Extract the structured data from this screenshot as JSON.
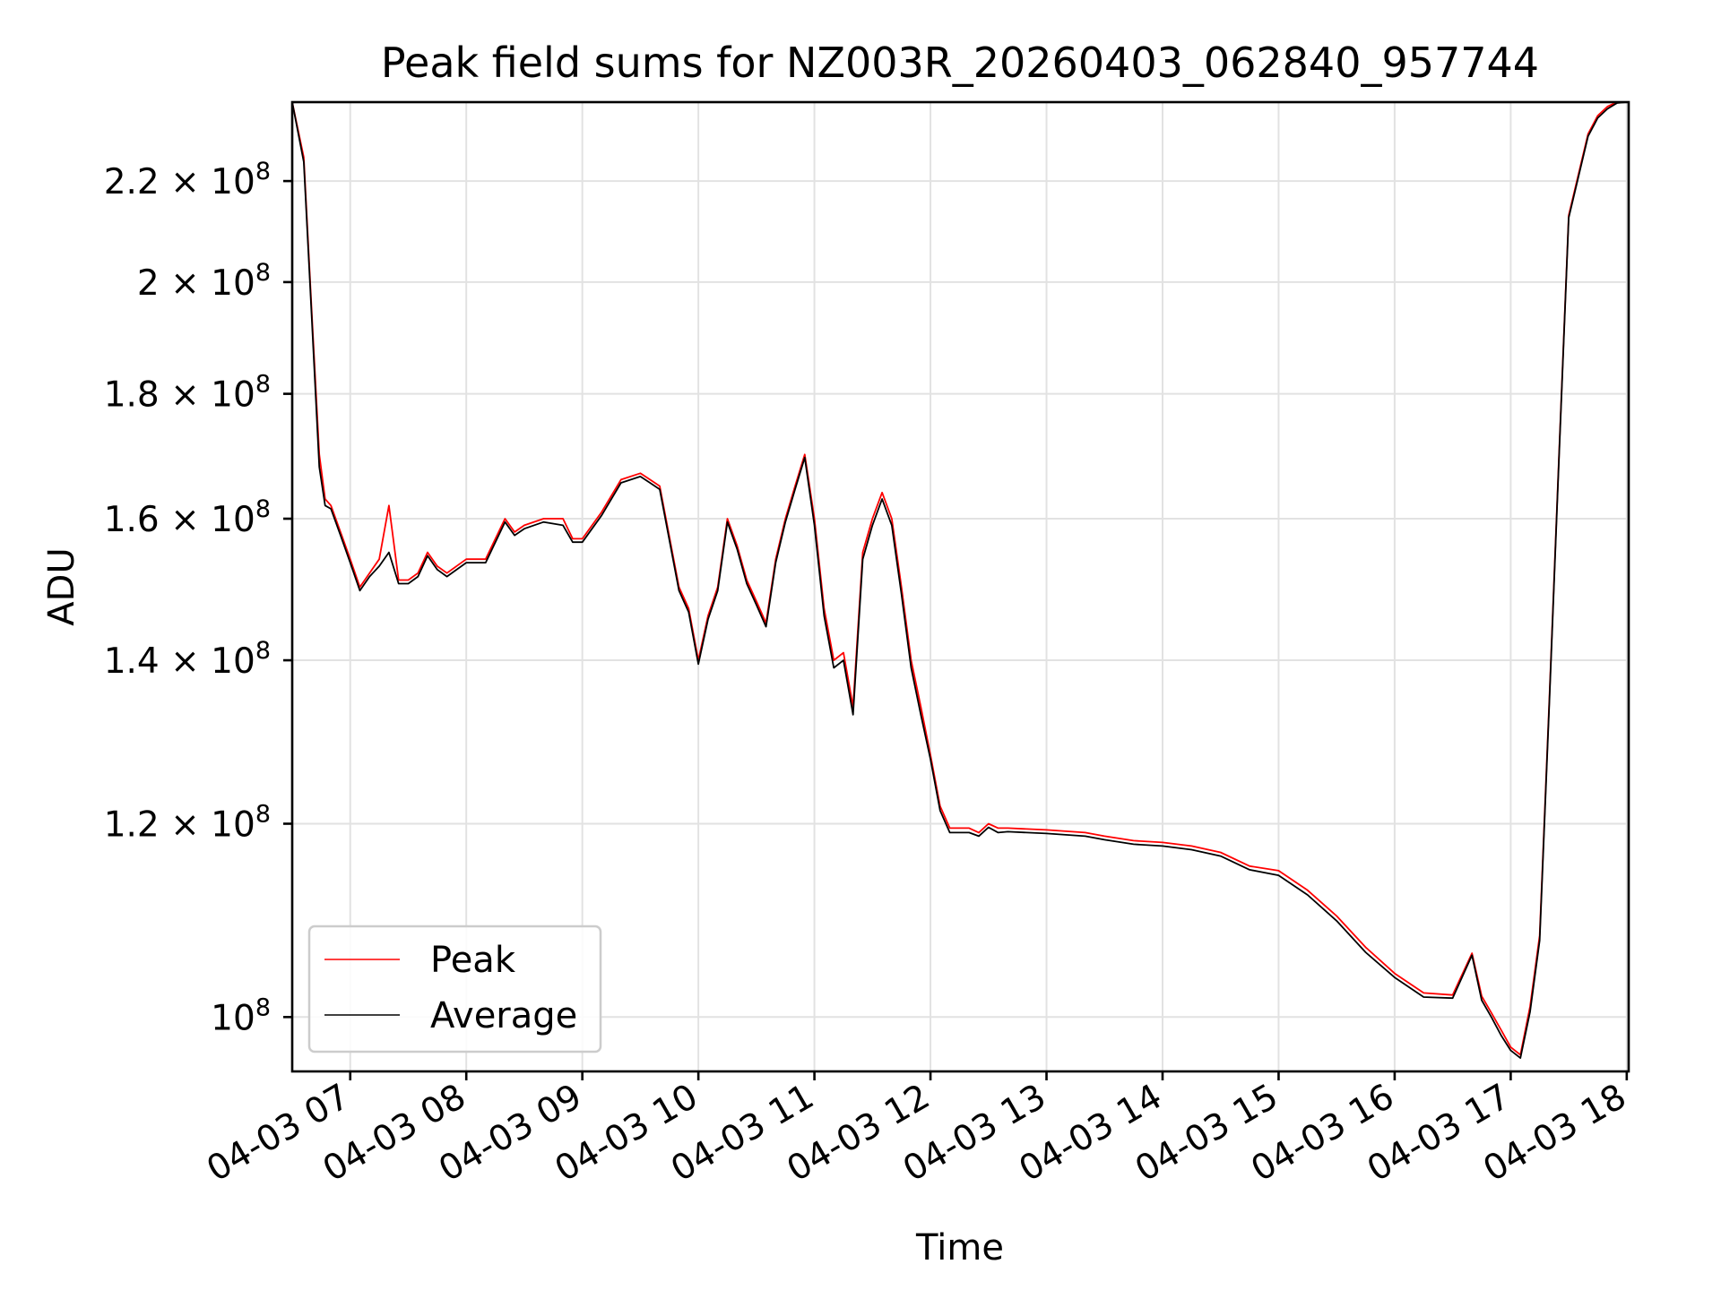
{
  "chart_data": {
    "type": "line",
    "title": "Peak field sums for NZ003R_20260403_062840_957744",
    "xlabel": "Time",
    "ylabel": "ADU",
    "yscale": "log",
    "xlim": [
      "2026-04-03 06:30",
      "2026-04-03 18:01"
    ],
    "ylim": [
      95000000,
      237000000
    ],
    "grid": true,
    "legend_position": "lower-left",
    "x_ticks": [
      "04-03 07",
      "04-03 08",
      "04-03 09",
      "04-03 10",
      "04-03 11",
      "04-03 12",
      "04-03 13",
      "04-03 14",
      "04-03 15",
      "04-03 16",
      "04-03 17",
      "04-03 18"
    ],
    "y_ticks": [
      {
        "value": 100000000,
        "mantissa": "",
        "exponent": "8"
      },
      {
        "value": 120000000,
        "mantissa": "1.2",
        "exponent": "8"
      },
      {
        "value": 140000000,
        "mantissa": "1.4",
        "exponent": "8"
      },
      {
        "value": 160000000,
        "mantissa": "1.6",
        "exponent": "8"
      },
      {
        "value": 180000000,
        "mantissa": "1.8",
        "exponent": "8"
      },
      {
        "value": 200000000,
        "mantissa": "2",
        "exponent": "8"
      },
      {
        "value": 220000000,
        "mantissa": "2.2",
        "exponent": "8"
      }
    ],
    "series": [
      {
        "name": "Peak",
        "color": "#ff0000",
        "x": [
          "2026-04-03 06:30",
          "2026-04-03 06:36",
          "2026-04-03 06:40",
          "2026-04-03 06:44",
          "2026-04-03 06:47",
          "2026-04-03 06:50",
          "2026-04-03 06:55",
          "2026-04-03 07:00",
          "2026-04-03 07:05",
          "2026-04-03 07:10",
          "2026-04-03 07:15",
          "2026-04-03 07:20",
          "2026-04-03 07:25",
          "2026-04-03 07:30",
          "2026-04-03 07:35",
          "2026-04-03 07:40",
          "2026-04-03 07:45",
          "2026-04-03 07:50",
          "2026-04-03 08:00",
          "2026-04-03 08:10",
          "2026-04-03 08:20",
          "2026-04-03 08:25",
          "2026-04-03 08:30",
          "2026-04-03 08:40",
          "2026-04-03 08:50",
          "2026-04-03 08:55",
          "2026-04-03 09:00",
          "2026-04-03 09:10",
          "2026-04-03 09:20",
          "2026-04-03 09:30",
          "2026-04-03 09:35",
          "2026-04-03 09:40",
          "2026-04-03 09:50",
          "2026-04-03 09:55",
          "2026-04-03 10:00",
          "2026-04-03 10:05",
          "2026-04-03 10:10",
          "2026-04-03 10:15",
          "2026-04-03 10:20",
          "2026-04-03 10:25",
          "2026-04-03 10:30",
          "2026-04-03 10:35",
          "2026-04-03 10:40",
          "2026-04-03 10:45",
          "2026-04-03 10:50",
          "2026-04-03 10:55",
          "2026-04-03 11:00",
          "2026-04-03 11:05",
          "2026-04-03 11:10",
          "2026-04-03 11:15",
          "2026-04-03 11:20",
          "2026-04-03 11:25",
          "2026-04-03 11:30",
          "2026-04-03 11:35",
          "2026-04-03 11:40",
          "2026-04-03 11:45",
          "2026-04-03 11:50",
          "2026-04-03 11:55",
          "2026-04-03 12:00",
          "2026-04-03 12:05",
          "2026-04-03 12:10",
          "2026-04-03 12:15",
          "2026-04-03 12:20",
          "2026-04-03 12:25",
          "2026-04-03 12:30",
          "2026-04-03 12:35",
          "2026-04-03 12:40",
          "2026-04-03 13:00",
          "2026-04-03 13:20",
          "2026-04-03 13:30",
          "2026-04-03 13:45",
          "2026-04-03 14:00",
          "2026-04-03 14:15",
          "2026-04-03 14:30",
          "2026-04-03 14:45",
          "2026-04-03 15:00",
          "2026-04-03 15:15",
          "2026-04-03 15:30",
          "2026-04-03 15:45",
          "2026-04-03 16:00",
          "2026-04-03 16:15",
          "2026-04-03 16:30",
          "2026-04-03 16:40",
          "2026-04-03 16:45",
          "2026-04-03 16:50",
          "2026-04-03 16:55",
          "2026-04-03 17:00",
          "2026-04-03 17:05",
          "2026-04-03 17:10",
          "2026-04-03 17:15",
          "2026-04-03 17:20",
          "2026-04-03 17:25",
          "2026-04-03 17:30",
          "2026-04-03 17:40",
          "2026-04-03 17:45",
          "2026-04-03 17:50",
          "2026-04-03 17:55",
          "2026-04-03 18:00"
        ],
        "y": [
          237000000,
          225000000,
          195000000,
          170000000,
          163000000,
          162000000,
          158000000,
          154000000,
          150000000,
          152000000,
          154000000,
          162000000,
          151000000,
          151000000,
          152000000,
          155000000,
          153000000,
          152000000,
          154000000,
          154000000,
          160000000,
          158000000,
          159000000,
          160000000,
          160000000,
          157000000,
          157000000,
          161000000,
          166000000,
          167000000,
          166000000,
          165000000,
          150000000,
          147000000,
          140000000,
          146000000,
          150000000,
          160000000,
          156000000,
          151000000,
          148000000,
          145000000,
          154000000,
          160000000,
          165000000,
          170000000,
          160000000,
          147000000,
          140000000,
          141000000,
          134000000,
          155000000,
          160000000,
          164000000,
          160000000,
          150000000,
          140000000,
          134000000,
          128000000,
          122000000,
          119500000,
          119500000,
          119500000,
          119000000,
          120000000,
          119500000,
          119500000,
          119300000,
          119000000,
          118600000,
          118100000,
          117900000,
          117500000,
          116800000,
          115300000,
          114800000,
          112700000,
          110000000,
          106800000,
          104200000,
          102300000,
          102100000,
          106200000,
          102000000,
          100400000,
          98800000,
          97200000,
          96500000,
          101000000,
          108000000,
          135000000,
          170000000,
          213000000,
          230000000,
          234000000,
          236000000,
          237000000,
          237000000
        ]
      },
      {
        "name": "Average",
        "color": "#000000",
        "x": [
          "2026-04-03 06:30",
          "2026-04-03 06:36",
          "2026-04-03 06:40",
          "2026-04-03 06:44",
          "2026-04-03 06:47",
          "2026-04-03 06:50",
          "2026-04-03 06:55",
          "2026-04-03 07:00",
          "2026-04-03 07:05",
          "2026-04-03 07:10",
          "2026-04-03 07:15",
          "2026-04-03 07:20",
          "2026-04-03 07:25",
          "2026-04-03 07:30",
          "2026-04-03 07:35",
          "2026-04-03 07:40",
          "2026-04-03 07:45",
          "2026-04-03 07:50",
          "2026-04-03 08:00",
          "2026-04-03 08:10",
          "2026-04-03 08:20",
          "2026-04-03 08:25",
          "2026-04-03 08:30",
          "2026-04-03 08:40",
          "2026-04-03 08:50",
          "2026-04-03 08:55",
          "2026-04-03 09:00",
          "2026-04-03 09:10",
          "2026-04-03 09:20",
          "2026-04-03 09:30",
          "2026-04-03 09:35",
          "2026-04-03 09:40",
          "2026-04-03 09:50",
          "2026-04-03 09:55",
          "2026-04-03 10:00",
          "2026-04-03 10:05",
          "2026-04-03 10:10",
          "2026-04-03 10:15",
          "2026-04-03 10:20",
          "2026-04-03 10:25",
          "2026-04-03 10:30",
          "2026-04-03 10:35",
          "2026-04-03 10:40",
          "2026-04-03 10:45",
          "2026-04-03 10:50",
          "2026-04-03 10:55",
          "2026-04-03 11:00",
          "2026-04-03 11:05",
          "2026-04-03 11:10",
          "2026-04-03 11:15",
          "2026-04-03 11:20",
          "2026-04-03 11:25",
          "2026-04-03 11:30",
          "2026-04-03 11:35",
          "2026-04-03 11:40",
          "2026-04-03 11:45",
          "2026-04-03 11:50",
          "2026-04-03 11:55",
          "2026-04-03 12:00",
          "2026-04-03 12:05",
          "2026-04-03 12:10",
          "2026-04-03 12:15",
          "2026-04-03 12:20",
          "2026-04-03 12:25",
          "2026-04-03 12:30",
          "2026-04-03 12:35",
          "2026-04-03 12:40",
          "2026-04-03 13:00",
          "2026-04-03 13:20",
          "2026-04-03 13:30",
          "2026-04-03 13:45",
          "2026-04-03 14:00",
          "2026-04-03 14:15",
          "2026-04-03 14:30",
          "2026-04-03 14:45",
          "2026-04-03 15:00",
          "2026-04-03 15:15",
          "2026-04-03 15:30",
          "2026-04-03 15:45",
          "2026-04-03 16:00",
          "2026-04-03 16:15",
          "2026-04-03 16:30",
          "2026-04-03 16:40",
          "2026-04-03 16:45",
          "2026-04-03 16:50",
          "2026-04-03 16:55",
          "2026-04-03 17:00",
          "2026-04-03 17:05",
          "2026-04-03 17:10",
          "2026-04-03 17:15",
          "2026-04-03 17:20",
          "2026-04-03 17:25",
          "2026-04-03 17:30",
          "2026-04-03 17:40",
          "2026-04-03 17:45",
          "2026-04-03 17:50",
          "2026-04-03 17:55",
          "2026-04-03 18:00"
        ],
        "y": [
          237000000,
          224000000,
          194000000,
          168000000,
          162000000,
          161500000,
          157500000,
          153500000,
          149500000,
          151500000,
          153000000,
          155000000,
          150500000,
          150500000,
          151500000,
          154500000,
          152500000,
          151500000,
          153500000,
          153500000,
          159500000,
          157500000,
          158500000,
          159500000,
          159000000,
          156500000,
          156500000,
          160500000,
          165500000,
          166500000,
          165500000,
          164500000,
          149500000,
          146500000,
          139500000,
          145500000,
          149500000,
          159500000,
          155500000,
          150500000,
          147500000,
          144500000,
          153500000,
          159500000,
          164500000,
          169500000,
          159000000,
          146000000,
          139000000,
          140000000,
          133000000,
          154000000,
          159000000,
          163000000,
          159000000,
          149000000,
          139000000,
          133000000,
          127500000,
          121500000,
          119000000,
          119000000,
          119000000,
          118600000,
          119600000,
          119000000,
          119100000,
          118900000,
          118600000,
          118200000,
          117700000,
          117500000,
          117100000,
          116400000,
          114900000,
          114300000,
          112200000,
          109500000,
          106300000,
          103800000,
          101900000,
          101800000,
          106000000,
          101600000,
          100000000,
          98300000,
          96900000,
          96200000,
          100500000,
          107500000,
          134500000,
          169500000,
          212500000,
          229500000,
          233500000,
          235500000,
          236800000,
          237000000
        ]
      }
    ]
  }
}
